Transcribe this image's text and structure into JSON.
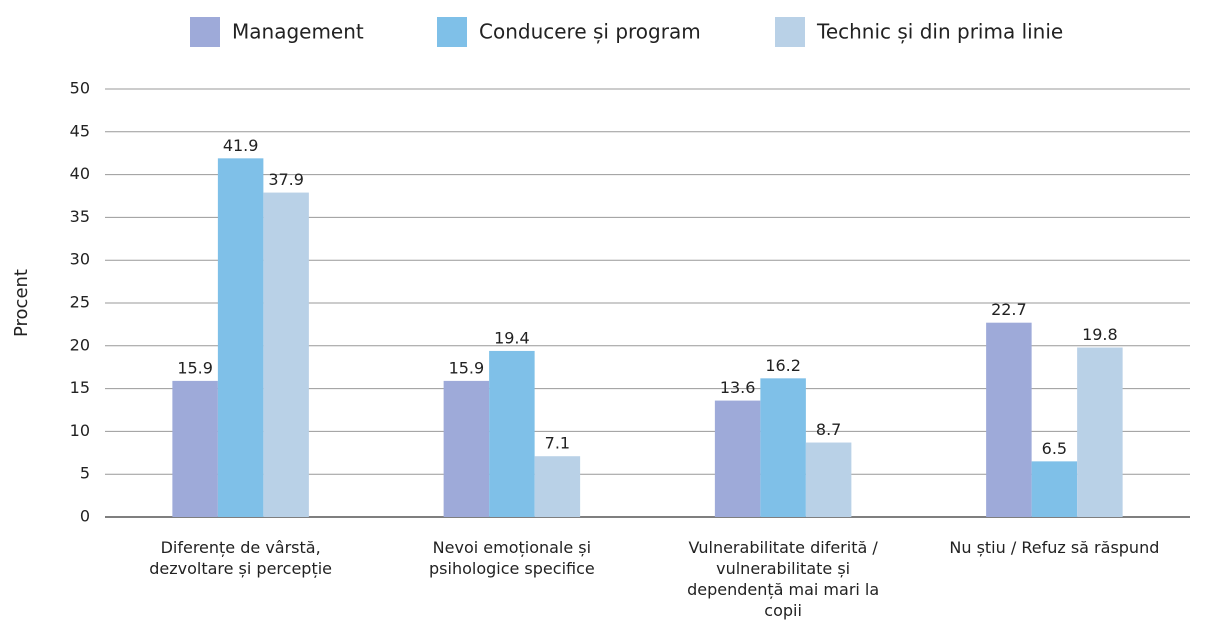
{
  "chart_data": {
    "type": "bar",
    "categories": [
      "Diferențe de vârstă, dezvoltare și percepție",
      "Nevoi emoționale și psihologice specifice",
      "Vulnerabilitate diferită / vulnerabilitate și dependență mai mari la copii",
      "Nu știu / Refuz să răspund"
    ],
    "series": [
      {
        "name": "Management",
        "color": "#9eaad9",
        "values": [
          15.9,
          15.9,
          13.6,
          22.7
        ]
      },
      {
        "name": "Conducere și program",
        "color": "#7fc0e8",
        "values": [
          41.9,
          19.4,
          16.2,
          6.5
        ]
      },
      {
        "name": "Technic și din prima linie",
        "color": "#b9d1e7",
        "values": [
          37.9,
          7.1,
          8.7,
          19.8
        ]
      }
    ],
    "y_label": "Procent",
    "ylim": [
      0,
      50
    ],
    "yticks": [
      0,
      5,
      10,
      15,
      20,
      25,
      30,
      35,
      40,
      45,
      50
    ],
    "grid": true,
    "legend": "top"
  }
}
